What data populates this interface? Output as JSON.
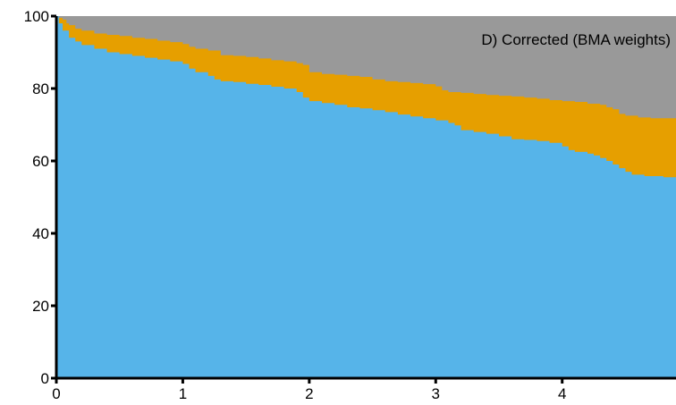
{
  "chart_data": {
    "type": "area",
    "stacked": true,
    "title": "D) Corrected (BMA weights)",
    "xlabel": "",
    "ylabel": "",
    "xlim": [
      0,
      4.9
    ],
    "ylim": [
      0,
      100
    ],
    "xticks": [
      0,
      1,
      2,
      3,
      4
    ],
    "yticks": [
      0,
      20,
      40,
      60,
      80,
      100
    ],
    "grid": false,
    "legend": "none",
    "series": [
      {
        "color": "#56B4E9",
        "points": [
          [
            0,
            100
          ],
          [
            0.02,
            98
          ],
          [
            0.05,
            96
          ],
          [
            0.1,
            94
          ],
          [
            0.15,
            93
          ],
          [
            0.2,
            92
          ],
          [
            0.3,
            91
          ],
          [
            0.4,
            90
          ],
          [
            0.5,
            89.5
          ],
          [
            0.6,
            89
          ],
          [
            0.7,
            88.5
          ],
          [
            0.8,
            88
          ],
          [
            0.9,
            87.5
          ],
          [
            1.0,
            86.8
          ],
          [
            1.05,
            85.5
          ],
          [
            1.1,
            84.5
          ],
          [
            1.2,
            83.5
          ],
          [
            1.25,
            82.5
          ],
          [
            1.3,
            82
          ],
          [
            1.4,
            81.8
          ],
          [
            1.5,
            81.3
          ],
          [
            1.6,
            81
          ],
          [
            1.7,
            80.5
          ],
          [
            1.8,
            80
          ],
          [
            1.9,
            79
          ],
          [
            1.95,
            77.5
          ],
          [
            2.0,
            76.5
          ],
          [
            2.1,
            76
          ],
          [
            2.2,
            75.5
          ],
          [
            2.3,
            74.8
          ],
          [
            2.4,
            74.5
          ],
          [
            2.5,
            74
          ],
          [
            2.6,
            73.5
          ],
          [
            2.7,
            72.8
          ],
          [
            2.8,
            72.3
          ],
          [
            2.9,
            71.8
          ],
          [
            3.0,
            71.2
          ],
          [
            3.1,
            70.5
          ],
          [
            3.15,
            69.8
          ],
          [
            3.2,
            68.5
          ],
          [
            3.3,
            68
          ],
          [
            3.4,
            67.5
          ],
          [
            3.5,
            66.8
          ],
          [
            3.6,
            66
          ],
          [
            3.7,
            65.8
          ],
          [
            3.8,
            65.5
          ],
          [
            3.9,
            65
          ],
          [
            4.0,
            64
          ],
          [
            4.05,
            63
          ],
          [
            4.1,
            62.5
          ],
          [
            4.2,
            62
          ],
          [
            4.25,
            61.5
          ],
          [
            4.3,
            60.8
          ],
          [
            4.35,
            60
          ],
          [
            4.4,
            59
          ],
          [
            4.45,
            58
          ],
          [
            4.5,
            57
          ],
          [
            4.55,
            56.2
          ],
          [
            4.65,
            55.8
          ],
          [
            4.8,
            55.5
          ],
          [
            4.9,
            55.5
          ]
        ]
      },
      {
        "color": "#E69F00",
        "points": [
          [
            0,
            100
          ],
          [
            0.02,
            99.5
          ],
          [
            0.05,
            99
          ],
          [
            0.08,
            98
          ],
          [
            0.1,
            97.5
          ],
          [
            0.15,
            96.5
          ],
          [
            0.2,
            96
          ],
          [
            0.3,
            95.2
          ],
          [
            0.4,
            94.8
          ],
          [
            0.5,
            94.5
          ],
          [
            0.6,
            94
          ],
          [
            0.7,
            93.7
          ],
          [
            0.8,
            93.2
          ],
          [
            0.9,
            92.8
          ],
          [
            1.0,
            92.3
          ],
          [
            1.05,
            91.5
          ],
          [
            1.1,
            91
          ],
          [
            1.2,
            90.5
          ],
          [
            1.3,
            89.2
          ],
          [
            1.4,
            89
          ],
          [
            1.5,
            88.7
          ],
          [
            1.6,
            88.3
          ],
          [
            1.7,
            87.8
          ],
          [
            1.8,
            87.5
          ],
          [
            1.9,
            87
          ],
          [
            1.95,
            86.5
          ],
          [
            2.0,
            84.5
          ],
          [
            2.1,
            84
          ],
          [
            2.2,
            83.8
          ],
          [
            2.3,
            83.5
          ],
          [
            2.4,
            83.2
          ],
          [
            2.5,
            82.5
          ],
          [
            2.6,
            82
          ],
          [
            2.7,
            81.8
          ],
          [
            2.8,
            81.5
          ],
          [
            2.9,
            81.2
          ],
          [
            3.0,
            80.6
          ],
          [
            3.05,
            79.5
          ],
          [
            3.1,
            79
          ],
          [
            3.2,
            78.8
          ],
          [
            3.3,
            78.5
          ],
          [
            3.4,
            78.2
          ],
          [
            3.5,
            78
          ],
          [
            3.6,
            77.8
          ],
          [
            3.7,
            77.5
          ],
          [
            3.8,
            77.2
          ],
          [
            3.9,
            76.8
          ],
          [
            4.0,
            76.5
          ],
          [
            4.1,
            76.3
          ],
          [
            4.2,
            75.8
          ],
          [
            4.3,
            75.5
          ],
          [
            4.35,
            74.8
          ],
          [
            4.4,
            74.3
          ],
          [
            4.45,
            73
          ],
          [
            4.5,
            72.5
          ],
          [
            4.6,
            72
          ],
          [
            4.7,
            71.8
          ],
          [
            4.9,
            71.5
          ]
        ]
      },
      {
        "color": "#999999",
        "points": [
          [
            0,
            100
          ],
          [
            4.9,
            100
          ]
        ]
      }
    ]
  }
}
